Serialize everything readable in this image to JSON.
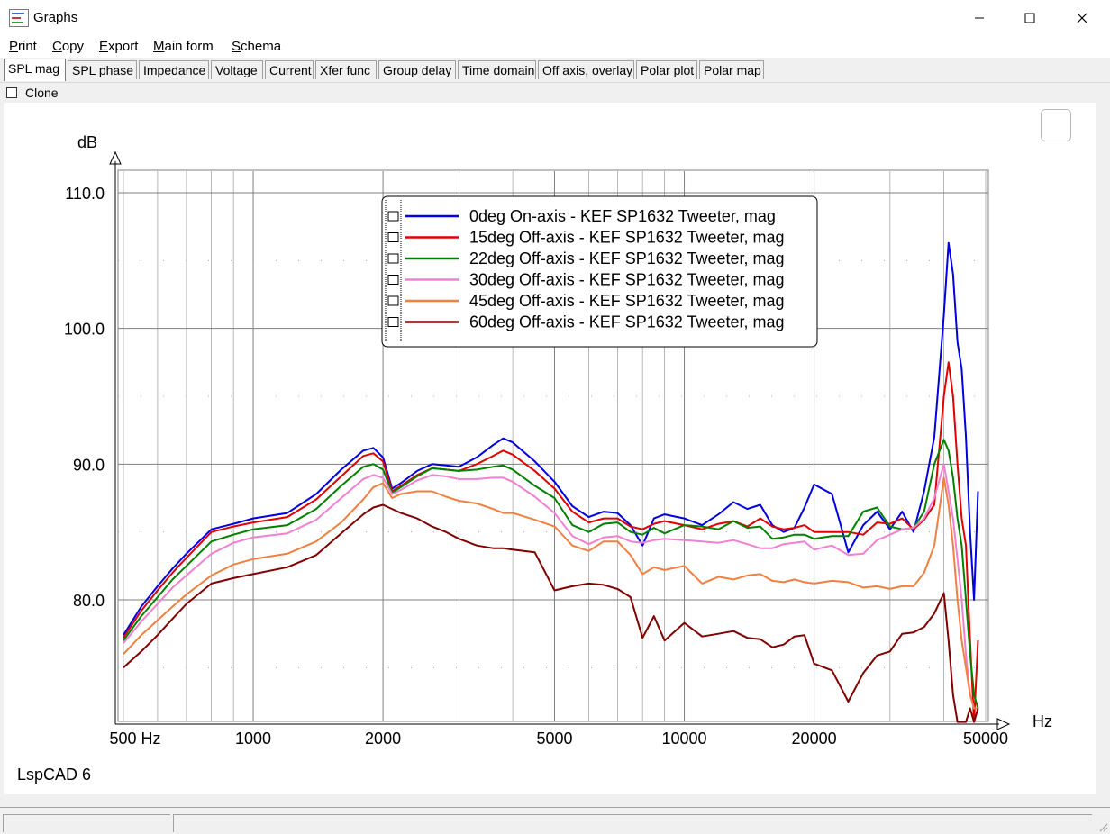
{
  "window": {
    "title": "Graphs"
  },
  "menu": {
    "items": [
      {
        "first": "P",
        "rest": "rint"
      },
      {
        "first": "C",
        "rest": "opy"
      },
      {
        "first": "E",
        "rest": "xport"
      },
      {
        "first": "M",
        "rest": "ain form"
      },
      {
        "first": "S",
        "rest": "chema"
      }
    ]
  },
  "tabs": [
    "SPL mag",
    "SPL phase",
    "Impedance",
    "Voltage",
    "Current",
    "Xfer func",
    "Group delay",
    "Time domain",
    "Off axis, overlay",
    "Polar plot",
    "Polar map"
  ],
  "active_tab": "SPL mag",
  "clone": {
    "label": "Clone",
    "checked": false
  },
  "watermark": "LspCAD 6",
  "chart_data": {
    "type": "line",
    "ylabel": "dB",
    "xlabel": "Hz",
    "xscale": "log",
    "xlim": [
      500,
      50000
    ],
    "ylim": [
      71,
      112
    ],
    "y_ticks": [
      "110.0",
      "100.0",
      "90.0",
      "80.0"
    ],
    "x_ticks": [
      "500 Hz",
      "1000",
      "2000",
      "5000",
      "10000",
      "20000",
      "50000"
    ],
    "grid": true,
    "legend_position": "top-center",
    "series": [
      {
        "name": "0deg On-axis - KEF SP1632 Tweeter, mag",
        "color": "#0000e0",
        "x": [
          500,
          550,
          600,
          650,
          700,
          800,
          900,
          1000,
          1200,
          1400,
          1600,
          1800,
          1900,
          2000,
          2100,
          2200,
          2400,
          2600,
          2800,
          3000,
          3300,
          3600,
          3800,
          4000,
          4500,
          5000,
          5500,
          6000,
          6500,
          7000,
          7500,
          8000,
          8500,
          9000,
          10000,
          11000,
          12000,
          13000,
          14000,
          15000,
          16000,
          17000,
          18000,
          19000,
          20000,
          22000,
          24000,
          26000,
          28000,
          30000,
          32000,
          34000,
          36000,
          38000,
          40000,
          41000,
          42000,
          43000,
          44000,
          45000,
          46000,
          47000,
          48000
        ],
        "y": [
          77.4,
          79.5,
          81,
          82.3,
          83.4,
          85.2,
          85.6,
          86,
          86.4,
          87.8,
          89.6,
          91,
          91.2,
          90.5,
          88.2,
          88.6,
          89.5,
          90,
          89.9,
          89.8,
          90.5,
          91.4,
          91.9,
          91.6,
          90.2,
          88.7,
          86.9,
          86.1,
          86.5,
          86.4,
          85.5,
          84,
          86,
          86.3,
          86,
          85.5,
          86.3,
          87.2,
          86.7,
          87,
          85.5,
          85,
          85.3,
          86.8,
          88.5,
          87.8,
          83.5,
          85.5,
          86.5,
          85.2,
          86.5,
          85,
          88,
          92,
          101,
          106.3,
          104,
          99,
          97,
          92,
          85,
          80,
          88
        ]
      },
      {
        "name": "15deg Off-axis - KEF SP1632 Tweeter, mag",
        "color": "#e00000",
        "x": [
          500,
          550,
          600,
          650,
          700,
          800,
          900,
          1000,
          1200,
          1400,
          1600,
          1800,
          1900,
          2000,
          2100,
          2200,
          2400,
          2600,
          2800,
          3000,
          3300,
          3600,
          3800,
          4000,
          4500,
          5000,
          5500,
          6000,
          6500,
          7000,
          7500,
          8000,
          8500,
          9000,
          10000,
          11000,
          12000,
          13000,
          14000,
          15000,
          16000,
          17000,
          18000,
          19000,
          20000,
          22000,
          24000,
          26000,
          28000,
          30000,
          32000,
          34000,
          36000,
          38000,
          40000,
          41000,
          42000,
          43000,
          44000,
          45000,
          46000,
          47000,
          48000
        ],
        "y": [
          77.2,
          79.2,
          80.7,
          82,
          83.1,
          85,
          85.4,
          85.7,
          86.1,
          87.4,
          89.1,
          90.6,
          90.8,
          90.2,
          88,
          88.4,
          89.2,
          89.7,
          89.6,
          89.5,
          90,
          90.6,
          91,
          90.7,
          89.5,
          88.2,
          86.5,
          85.7,
          86,
          86,
          85.4,
          85.2,
          85.6,
          85.8,
          85.5,
          85.2,
          85.6,
          85.8,
          85.4,
          86,
          85.4,
          85.2,
          85.3,
          85.5,
          85,
          85,
          85,
          84.8,
          85.7,
          85.6,
          86,
          85.2,
          85.9,
          87,
          95,
          97.5,
          95,
          90,
          86,
          84,
          77,
          71,
          77
        ]
      },
      {
        "name": "22deg Off-axis - KEF SP1632 Tweeter, mag",
        "color": "#008000",
        "x": [
          500,
          550,
          600,
          650,
          700,
          800,
          900,
          1000,
          1200,
          1400,
          1600,
          1800,
          1900,
          2000,
          2100,
          2200,
          2400,
          2600,
          2800,
          3000,
          3300,
          3600,
          3800,
          4000,
          4500,
          5000,
          5500,
          6000,
          6500,
          7000,
          7500,
          8000,
          8500,
          9000,
          10000,
          11000,
          12000,
          13000,
          14000,
          15000,
          16000,
          17000,
          18000,
          19000,
          20000,
          22000,
          24000,
          26000,
          28000,
          30000,
          32000,
          34000,
          36000,
          38000,
          40000,
          41000,
          42000,
          43000,
          44000,
          45000,
          46000,
          47000,
          48000
        ],
        "y": [
          77,
          78.8,
          80.2,
          81.5,
          82.5,
          84.3,
          84.8,
          85.2,
          85.5,
          86.7,
          88.4,
          89.8,
          90,
          89.6,
          87.9,
          88.3,
          89.1,
          89.7,
          89.6,
          89.5,
          89.6,
          89.8,
          89.9,
          89.6,
          88.4,
          87.5,
          85.5,
          85,
          85.6,
          85.7,
          85,
          84.8,
          85.3,
          84.9,
          85.5,
          85.4,
          85.2,
          85.8,
          85.3,
          85.4,
          84.5,
          84.6,
          84.8,
          84.8,
          84.5,
          84.7,
          84.7,
          86.5,
          86.8,
          85.4,
          85.2,
          85.3,
          86.5,
          90,
          91.8,
          91,
          89,
          86,
          84,
          80,
          76,
          73,
          72
        ]
      },
      {
        "name": "30deg Off-axis - KEF SP1632 Tweeter, mag",
        "color": "#f080d0",
        "x": [
          500,
          550,
          600,
          650,
          700,
          800,
          900,
          1000,
          1200,
          1400,
          1600,
          1800,
          1900,
          2000,
          2100,
          2200,
          2400,
          2600,
          2800,
          3000,
          3300,
          3600,
          3800,
          4000,
          4500,
          5000,
          5500,
          6000,
          6500,
          7000,
          7500,
          8000,
          8500,
          9000,
          10000,
          11000,
          12000,
          13000,
          14000,
          15000,
          16000,
          17000,
          18000,
          19000,
          20000,
          22000,
          24000,
          26000,
          28000,
          30000,
          32000,
          34000,
          36000,
          38000,
          40000,
          41000,
          42000,
          43000,
          44000,
          45000,
          46000,
          47000,
          48000
        ],
        "y": [
          76.8,
          78.4,
          79.7,
          80.9,
          81.8,
          83.4,
          84.2,
          84.6,
          84.9,
          85.9,
          87.5,
          88.9,
          89.2,
          89,
          87.8,
          88.1,
          88.8,
          89.2,
          89.1,
          88.9,
          88.9,
          89,
          89,
          88.7,
          87.6,
          86.4,
          84.7,
          84.1,
          84.6,
          84.7,
          84.3,
          84.2,
          84.4,
          84.5,
          84.4,
          84.3,
          84.2,
          84.4,
          84.1,
          83.8,
          83.8,
          84.1,
          84.2,
          84.3,
          83.7,
          84,
          83.3,
          83.4,
          84.4,
          84.8,
          85.2,
          85.3,
          86,
          87.5,
          90,
          88,
          86,
          83,
          80,
          76,
          73,
          72,
          72
        ]
      },
      {
        "name": "45deg Off-axis - KEF SP1632 Tweeter, mag",
        "color": "#f08040",
        "x": [
          500,
          550,
          600,
          650,
          700,
          800,
          900,
          1000,
          1200,
          1400,
          1600,
          1800,
          1900,
          2000,
          2100,
          2200,
          2400,
          2600,
          2800,
          3000,
          3300,
          3600,
          3800,
          4000,
          4500,
          5000,
          5500,
          6000,
          6500,
          7000,
          7500,
          8000,
          8500,
          9000,
          10000,
          11000,
          12000,
          13000,
          14000,
          15000,
          16000,
          17000,
          18000,
          19000,
          20000,
          22000,
          24000,
          26000,
          28000,
          30000,
          32000,
          34000,
          36000,
          38000,
          40000,
          41000,
          42000,
          43000,
          44000,
          45000,
          46000,
          47000,
          48000
        ],
        "y": [
          76,
          77.4,
          78.5,
          79.5,
          80.4,
          81.8,
          82.6,
          83,
          83.4,
          84.3,
          85.7,
          87.4,
          88.3,
          88.6,
          87.5,
          87.8,
          88,
          88,
          87.6,
          87.3,
          87.1,
          86.7,
          86.4,
          86.4,
          85.9,
          85.4,
          84,
          83.6,
          84.3,
          84.3,
          83.3,
          81.9,
          82.4,
          82.2,
          82.5,
          81.2,
          81.7,
          81.5,
          81.8,
          81.9,
          81.4,
          81.3,
          81.5,
          81.3,
          81.2,
          81.4,
          81.3,
          80.9,
          81,
          80.8,
          81,
          81,
          82,
          84,
          89,
          87,
          84,
          80,
          77,
          75,
          73,
          72,
          72
        ]
      },
      {
        "name": "60deg Off-axis - KEF SP1632 Tweeter, mag",
        "color": "#800000",
        "x": [
          500,
          550,
          600,
          650,
          700,
          800,
          900,
          1000,
          1200,
          1400,
          1600,
          1800,
          1900,
          2000,
          2100,
          2200,
          2400,
          2600,
          2800,
          3000,
          3300,
          3600,
          3800,
          4000,
          4500,
          5000,
          5500,
          6000,
          6500,
          7000,
          7500,
          8000,
          8500,
          9000,
          10000,
          11000,
          12000,
          13000,
          14000,
          15000,
          16000,
          17000,
          18000,
          19000,
          20000,
          22000,
          24000,
          26000,
          28000,
          30000,
          32000,
          34000,
          36000,
          38000,
          40000,
          41000,
          42000,
          43000,
          44000,
          45000,
          46000,
          47000,
          48000
        ],
        "y": [
          75,
          76.2,
          77.4,
          78.6,
          79.7,
          81.2,
          81.6,
          81.9,
          82.4,
          83.3,
          84.9,
          86.3,
          86.8,
          87,
          86.7,
          86.4,
          86,
          85.4,
          85,
          84.5,
          84,
          83.8,
          83.8,
          83.7,
          83.5,
          80.7,
          81,
          81.2,
          81.1,
          80.8,
          80.2,
          77.2,
          78.8,
          77,
          78.3,
          77.3,
          77.5,
          77.7,
          77.2,
          77.1,
          76.5,
          76.7,
          77.3,
          77.4,
          75.3,
          74.8,
          72.5,
          74.6,
          75.9,
          76.2,
          77.5,
          77.6,
          78,
          79,
          80.5,
          77,
          73,
          70.5,
          70,
          71,
          72,
          70,
          72
        ]
      }
    ]
  }
}
